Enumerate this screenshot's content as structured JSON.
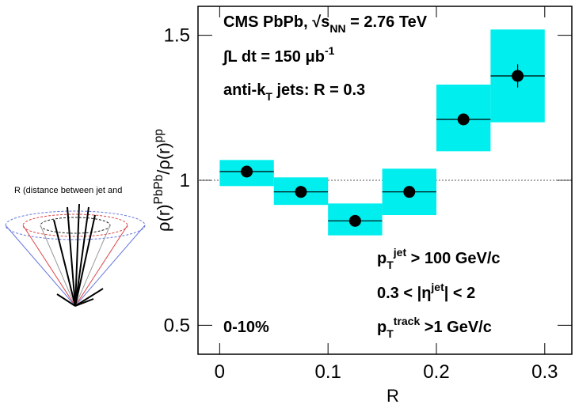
{
  "diagram": {
    "caption": "R (distance between jet and"
  },
  "chart_data": {
    "type": "scatter",
    "x": [
      0.025,
      0.075,
      0.125,
      0.175,
      0.225,
      0.275
    ],
    "bin_width": 0.05,
    "values": [
      1.03,
      0.96,
      0.86,
      0.96,
      1.21,
      1.36
    ],
    "errors": [
      0.01,
      0.01,
      0.01,
      0.01,
      0.02,
      0.04
    ],
    "sys_low": [
      0.98,
      0.915,
      0.81,
      0.88,
      1.1,
      1.2
    ],
    "sys_high": [
      1.07,
      1.01,
      0.92,
      1.04,
      1.33,
      1.52
    ],
    "color": "#000000",
    "band_color": "#00eeee",
    "reference": 1,
    "xlim": [
      -0.02,
      0.325
    ],
    "ylim": [
      0.4,
      1.6
    ],
    "xticks": [
      0,
      0.1,
      0.2,
      0.3
    ],
    "yticks": [
      0.5,
      1,
      1.5
    ],
    "xlabel": "R",
    "ylabel": [
      {
        "text": "ρ(r)",
        "pos": "base"
      },
      {
        "text": "PbPb",
        "pos": "sup"
      },
      {
        "text": "/ρ(r)",
        "pos": "base"
      },
      {
        "text": "pp",
        "pos": "sup"
      }
    ],
    "annotations": [
      [
        {
          "text": "CMS PbPb,   √s",
          "pos": "base"
        },
        {
          "text": "NN",
          "pos": "sub"
        },
        {
          "text": " = 2.76 TeV",
          "pos": "base"
        }
      ],
      [
        {
          "text": "∫L dt = 150 μb",
          "pos": "base"
        },
        {
          "text": "-1",
          "pos": "sup"
        }
      ],
      [
        {
          "text": "anti-k",
          "pos": "base"
        },
        {
          "text": "T",
          "pos": "sub"
        },
        {
          "text": " jets: R = 0.3",
          "pos": "base"
        }
      ],
      [
        {
          "text": "p",
          "pos": "base"
        },
        {
          "text": "T",
          "pos": "sub"
        },
        {
          "text": "jet",
          "pos": "sup"
        },
        {
          "text": " > 100 GeV/c",
          "pos": "base"
        }
      ],
      [
        {
          "text": "0.3 < |η",
          "pos": "base"
        },
        {
          "text": "jet",
          "pos": "sup"
        },
        {
          "text": "| < 2",
          "pos": "base"
        }
      ],
      [
        {
          "text": "p",
          "pos": "base"
        },
        {
          "text": "T",
          "pos": "sub"
        },
        {
          "text": "track",
          "pos": "sup"
        },
        {
          "text": " >1 GeV/c",
          "pos": "base"
        }
      ],
      [
        {
          "text": "0-10%",
          "pos": "base"
        }
      ]
    ]
  }
}
